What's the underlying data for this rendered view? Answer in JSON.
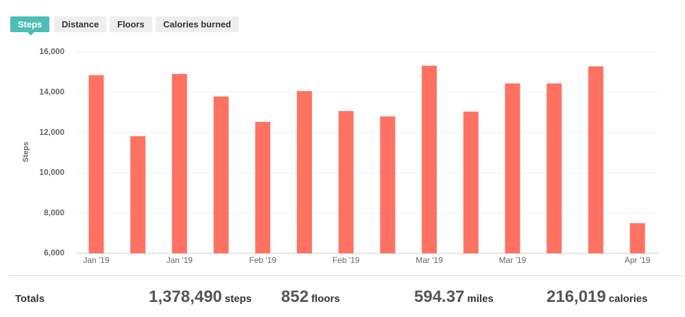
{
  "tabs": [
    "Steps",
    "Distance",
    "Floors",
    "Calories burned"
  ],
  "chart_data": {
    "type": "bar",
    "ylabel": "Steps",
    "categories": [
      "Jan '19",
      null,
      "Jan '19",
      null,
      "Feb '19",
      null,
      "Feb '19",
      null,
      "Mar '19",
      null,
      "Mar '19",
      null,
      null,
      "Apr '19"
    ],
    "values": [
      14850,
      11820,
      14910,
      13790,
      12530,
      14060,
      13070,
      12800,
      15320,
      13040,
      14440,
      14440,
      15290,
      7500
    ],
    "color": "#ff7262",
    "ylim": [
      6000,
      16000
    ],
    "yticks": [
      {
        "value": 6000,
        "label": "6,000"
      },
      {
        "value": 8000,
        "label": "8,000"
      },
      {
        "value": 10000,
        "label": "10,000"
      },
      {
        "value": 12000,
        "label": "12,000"
      },
      {
        "value": 14000,
        "label": "14,000"
      },
      {
        "value": 16000,
        "label": "16,000"
      }
    ],
    "grid": true
  },
  "totals": {
    "label": "Totals",
    "stats": [
      {
        "value": "1,378,490",
        "unit": "steps"
      },
      {
        "value": "852",
        "unit": "floors"
      },
      {
        "value": "594.37",
        "unit": "miles"
      },
      {
        "value": "216,019",
        "unit": "calories"
      }
    ]
  }
}
